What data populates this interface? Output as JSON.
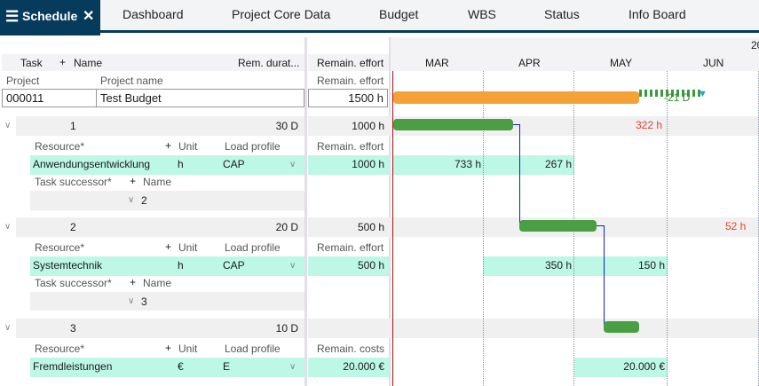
{
  "tabs": {
    "active": "Schedule",
    "items": [
      "Dashboard",
      "Project Core Data",
      "Budget",
      "WBS",
      "Status",
      "Info Board"
    ]
  },
  "columns": {
    "task": "Task",
    "name": "Name",
    "rem_duration": "Rem. durat...",
    "remain_effort": "Remain. effort"
  },
  "project": {
    "label_project": "Project",
    "label_name": "Project name",
    "label_effort": "Remain. effort",
    "id": "000011",
    "name": "Test Budget",
    "effort": "1500 h"
  },
  "timeline": {
    "year": "20",
    "months": [
      "MAR",
      "APR",
      "MAY",
      "JUN"
    ],
    "project_delay": "-21 D"
  },
  "tasks": [
    {
      "id": "1",
      "duration": "30 D",
      "effort": "1000 h",
      "over": "322 h",
      "res_hdr": {
        "resource": "Resource*",
        "unit": "Unit",
        "profile": "Load profile",
        "value": "Remain. effort"
      },
      "resource": {
        "name": "Anwendungsentwicklung",
        "unit": "h",
        "profile": "CAP",
        "value": "1000 h",
        "cells": [
          "733 h",
          "267 h"
        ]
      },
      "succ_hdr": {
        "label": "Task successor*",
        "name": "Name"
      },
      "successor": "2"
    },
    {
      "id": "2",
      "duration": "20 D",
      "effort": "500 h",
      "over": "52 h",
      "res_hdr": {
        "resource": "Resource*",
        "unit": "Unit",
        "profile": "Load profile",
        "value": "Remain. effort"
      },
      "resource": {
        "name": "Systemtechnik",
        "unit": "h",
        "profile": "CAP",
        "value": "500 h",
        "cells": [
          "350 h",
          "150 h"
        ]
      },
      "succ_hdr": {
        "label": "Task successor*",
        "name": "Name"
      },
      "successor": "3"
    },
    {
      "id": "3",
      "duration": "10 D",
      "effort": "",
      "res_hdr": {
        "resource": "Resource*",
        "unit": "Unit",
        "profile": "Load profile",
        "value": "Remain. costs"
      },
      "resource": {
        "name": "Fremdleistungen",
        "unit": "€",
        "profile": "E",
        "value": "20.000 €",
        "cells": [
          "20.000 €"
        ]
      }
    }
  ],
  "colors": {
    "nav": "#073b5c",
    "project_bar": "#f4a236",
    "task_bar": "#4a9e44",
    "overload": "#e8412c",
    "resource_cell": "#bdf7e6",
    "today_line": "#b01010",
    "dependency": "#1020d0"
  }
}
